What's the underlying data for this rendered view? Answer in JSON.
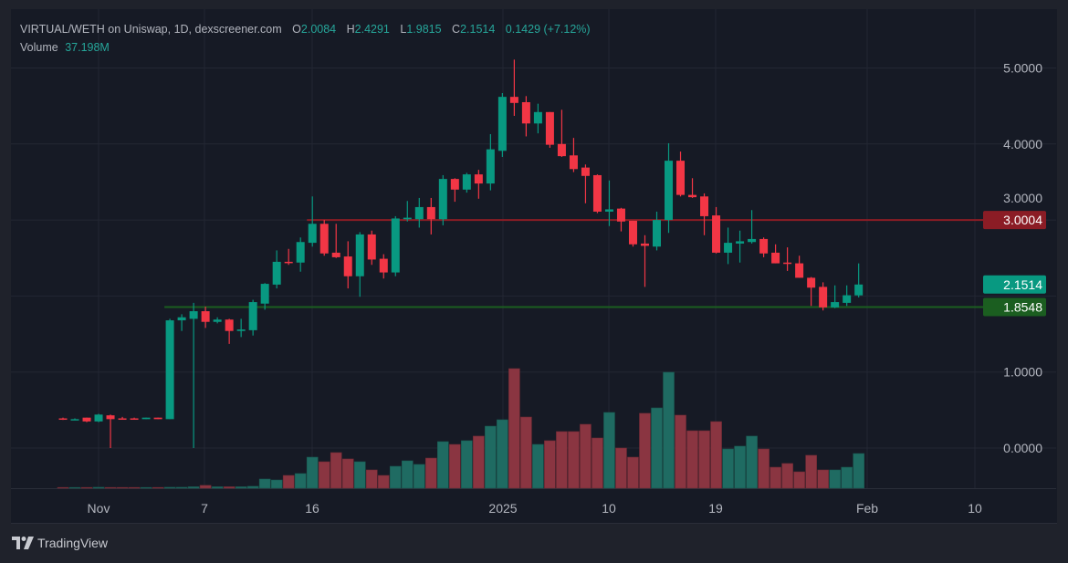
{
  "legend": {
    "title": "VIRTUAL/WETH on Uniswap, 1D, dexscreener.com",
    "open_label": "O",
    "open": "2.0084",
    "high_label": "H",
    "high": "2.4291",
    "low_label": "L",
    "low": "1.9815",
    "close_label": "C",
    "close": "2.1514",
    "change": "0.1429 (+7.12%)",
    "volume_label": "Volume",
    "volume": "37.198M"
  },
  "branding": {
    "name": "TradingView"
  },
  "colors": {
    "up": "#089981",
    "down": "#f23645",
    "vol_up": "#1f6b62",
    "vol_down": "#8a3541",
    "resistance": "#8b1c25",
    "support": "#1b5e20",
    "grid": "#232733",
    "text": "#b2b5be"
  },
  "chart_data": {
    "type": "candlestick",
    "title": "VIRTUAL/WETH on Uniswap, 1D",
    "x_tick_labels": [
      "Nov",
      "7",
      "16",
      "2025",
      "10",
      "19",
      "Feb",
      "10"
    ],
    "y_tick_labels": [
      "5.0000",
      "4.0000",
      "3.0000",
      "1.0000",
      "0.0000"
    ],
    "ylim": [
      -0.55,
      5.9
    ],
    "horizontal_lines": [
      {
        "name": "resistance",
        "value": 3.0004,
        "label": "3.0004",
        "start_bar": 21
      },
      {
        "name": "support",
        "value": 1.8548,
        "label": "1.8548",
        "start_bar": 9
      }
    ],
    "last_price_label": "2.1514",
    "ohlc": [
      [
        0.39,
        0.4,
        0.37,
        0.38
      ],
      [
        0.38,
        0.39,
        0.37,
        0.38
      ],
      [
        0.4,
        0.4,
        0.34,
        0.35
      ],
      [
        0.35,
        0.45,
        0.34,
        0.44
      ],
      [
        0.43,
        0.44,
        0.0,
        0.38
      ],
      [
        0.39,
        0.41,
        0.38,
        0.38
      ],
      [
        0.39,
        0.4,
        0.38,
        0.38
      ],
      [
        0.38,
        0.4,
        0.38,
        0.4
      ],
      [
        0.4,
        0.4,
        0.38,
        0.38
      ],
      [
        0.38,
        1.7,
        0.38,
        1.68
      ],
      [
        1.68,
        1.76,
        1.54,
        1.72
      ],
      [
        1.7,
        1.91,
        0.0,
        1.8
      ],
      [
        1.8,
        1.86,
        1.58,
        1.66
      ],
      [
        1.66,
        1.72,
        1.64,
        1.69
      ],
      [
        1.69,
        1.7,
        1.37,
        1.54
      ],
      [
        1.54,
        1.7,
        1.46,
        1.56
      ],
      [
        1.55,
        1.95,
        1.48,
        1.92
      ],
      [
        1.9,
        2.17,
        1.82,
        2.16
      ],
      [
        2.15,
        2.6,
        2.1,
        2.45
      ],
      [
        2.45,
        2.62,
        2.41,
        2.44
      ],
      [
        2.44,
        2.77,
        2.32,
        2.71
      ],
      [
        2.7,
        3.31,
        2.65,
        2.95
      ],
      [
        2.95,
        3.0,
        2.53,
        2.56
      ],
      [
        2.57,
        2.95,
        2.5,
        2.51
      ],
      [
        2.52,
        2.72,
        2.1,
        2.26
      ],
      [
        2.26,
        2.84,
        1.99,
        2.81
      ],
      [
        2.81,
        2.86,
        2.41,
        2.48
      ],
      [
        2.49,
        2.55,
        2.23,
        2.31
      ],
      [
        2.31,
        3.05,
        2.26,
        3.02
      ],
      [
        3.01,
        3.25,
        2.98,
        3.03
      ],
      [
        3.01,
        3.29,
        2.9,
        3.17
      ],
      [
        3.17,
        3.29,
        2.81,
        3.01
      ],
      [
        3.01,
        3.59,
        2.93,
        3.54
      ],
      [
        3.54,
        3.55,
        3.24,
        3.4
      ],
      [
        3.4,
        3.62,
        3.36,
        3.6
      ],
      [
        3.6,
        3.66,
        3.28,
        3.48
      ],
      [
        3.48,
        4.13,
        3.39,
        3.93
      ],
      [
        3.91,
        4.67,
        3.83,
        4.62
      ],
      [
        4.62,
        5.11,
        4.37,
        4.54
      ],
      [
        4.55,
        4.63,
        4.1,
        4.27
      ],
      [
        4.27,
        4.53,
        4.14,
        4.42
      ],
      [
        4.42,
        4.42,
        3.95,
        3.99
      ],
      [
        4.0,
        4.45,
        3.83,
        3.84
      ],
      [
        3.85,
        4.08,
        3.63,
        3.67
      ],
      [
        3.69,
        3.73,
        3.22,
        3.58
      ],
      [
        3.59,
        3.6,
        3.09,
        3.11
      ],
      [
        3.11,
        3.52,
        2.92,
        3.14
      ],
      [
        3.15,
        3.16,
        2.85,
        2.98
      ],
      [
        2.99,
        2.99,
        2.65,
        2.68
      ],
      [
        2.69,
        2.8,
        2.12,
        2.66
      ],
      [
        2.65,
        3.11,
        2.6,
        3.0
      ],
      [
        3.0,
        4.01,
        2.83,
        3.78
      ],
      [
        3.78,
        3.9,
        3.31,
        3.33
      ],
      [
        3.33,
        3.55,
        3.29,
        3.3
      ],
      [
        3.31,
        3.35,
        2.8,
        3.05
      ],
      [
        3.06,
        3.17,
        2.56,
        2.57
      ],
      [
        2.57,
        2.9,
        2.42,
        2.7
      ],
      [
        2.69,
        2.86,
        2.44,
        2.72
      ],
      [
        2.71,
        3.13,
        2.69,
        2.75
      ],
      [
        2.75,
        2.77,
        2.51,
        2.56
      ],
      [
        2.57,
        2.68,
        2.43,
        2.43
      ],
      [
        2.44,
        2.64,
        2.33,
        2.43
      ],
      [
        2.43,
        2.53,
        2.24,
        2.24
      ],
      [
        2.24,
        2.25,
        1.87,
        2.11
      ],
      [
        2.12,
        2.18,
        1.81,
        1.85
      ],
      [
        1.85,
        2.14,
        1.84,
        1.92
      ],
      [
        1.91,
        2.14,
        1.87,
        2.01
      ],
      [
        2.0084,
        2.4291,
        1.9815,
        2.1514
      ]
    ],
    "volume_millions": [
      0.8,
      0.8,
      0.8,
      1,
      0.8,
      0.8,
      0.8,
      0.8,
      0.8,
      1,
      1,
      1.5,
      3,
      1.5,
      1.5,
      1.5,
      2,
      9.8,
      8.8,
      13.7,
      15.7,
      33.3,
      28.4,
      38.2,
      31.4,
      28.4,
      19.6,
      13.7,
      23.5,
      29.4,
      25.5,
      32.3,
      50,
      47,
      51,
      55.9,
      66.6,
      73.5,
      128.4,
      76.4,
      47,
      51,
      60.8,
      60.8,
      68.6,
      53.9,
      81.3,
      43.1,
      33.3,
      80.4,
      86.2,
      124.5,
      78.4,
      61.7,
      61.7,
      71.5,
      42.1,
      45.1,
      55.9,
      42.1,
      22.5,
      26.5,
      17.6,
      35.3,
      19.6,
      19.6,
      22.5,
      37.198
    ]
  }
}
